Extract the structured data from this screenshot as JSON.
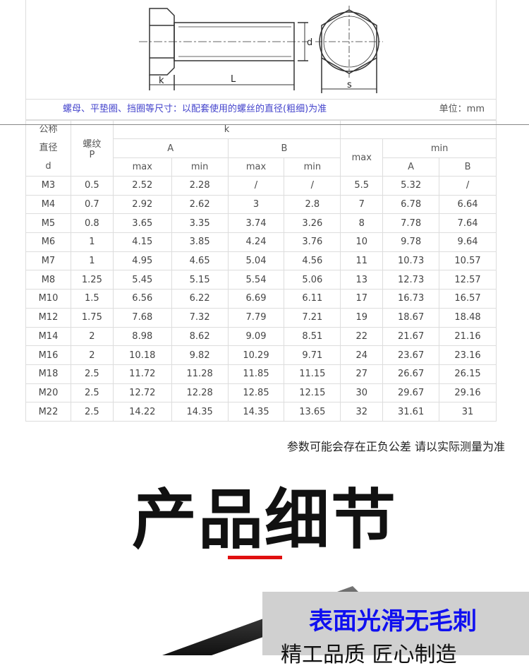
{
  "drawing": {
    "labels": {
      "k": "k",
      "L": "L",
      "d": "d",
      "s": "s"
    }
  },
  "caption": {
    "left": "螺母、平垫圈、挡圈等尺寸：以配套使用的螺丝的直径(粗细)为准",
    "right": "单位：mm"
  },
  "table": {
    "header": {
      "d": "公称 直径 d",
      "p": "螺纹 P",
      "k": "k",
      "A": "A",
      "B": "B",
      "s_max": "max",
      "min": "min",
      "max": "max",
      "min_s": "min",
      "minA": "A",
      "minB": "B"
    },
    "rows": [
      [
        "M3",
        "0.5",
        "2.52",
        "2.28",
        "/",
        "/",
        "5.5",
        "5.32",
        "/"
      ],
      [
        "M4",
        "0.7",
        "2.92",
        "2.62",
        "3",
        "2.8",
        "7",
        "6.78",
        "6.64"
      ],
      [
        "M5",
        "0.8",
        "3.65",
        "3.35",
        "3.74",
        "3.26",
        "8",
        "7.78",
        "7.64"
      ],
      [
        "M6",
        "1",
        "4.15",
        "3.85",
        "4.24",
        "3.76",
        "10",
        "9.78",
        "9.64"
      ],
      [
        "M7",
        "1",
        "4.95",
        "4.65",
        "5.04",
        "4.56",
        "11",
        "10.73",
        "10.57"
      ],
      [
        "M8",
        "1.25",
        "5.45",
        "5.15",
        "5.54",
        "5.06",
        "13",
        "12.73",
        "12.57"
      ],
      [
        "M10",
        "1.5",
        "6.56",
        "6.22",
        "6.69",
        "6.11",
        "17",
        "16.73",
        "16.57"
      ],
      [
        "M12",
        "1.75",
        "7.68",
        "7.32",
        "7.79",
        "7.21",
        "19",
        "18.67",
        "18.48"
      ],
      [
        "M14",
        "2",
        "8.98",
        "8.62",
        "9.09",
        "8.51",
        "22",
        "21.67",
        "21.16"
      ],
      [
        "M16",
        "2",
        "10.18",
        "9.82",
        "10.29",
        "9.71",
        "24",
        "23.67",
        "23.16"
      ],
      [
        "M18",
        "2.5",
        "11.72",
        "11.28",
        "11.85",
        "11.15",
        "27",
        "26.67",
        "26.15"
      ],
      [
        "M20",
        "2.5",
        "12.72",
        "12.28",
        "12.85",
        "12.15",
        "30",
        "29.67",
        "29.16"
      ],
      [
        "M22",
        "2.5",
        "14.22",
        "14.35",
        "14.35",
        "13.65",
        "32",
        "31.61",
        "31"
      ]
    ]
  },
  "note": "参数可能会存在正负公差 请以实际测量为准",
  "section_title": "产品细节",
  "photo": {
    "headline": "表面光滑无毛刺",
    "subline": "精工品质 匠心制造"
  },
  "colors": {
    "accent_red": "#e01010",
    "headline_blue": "#1010f0"
  }
}
